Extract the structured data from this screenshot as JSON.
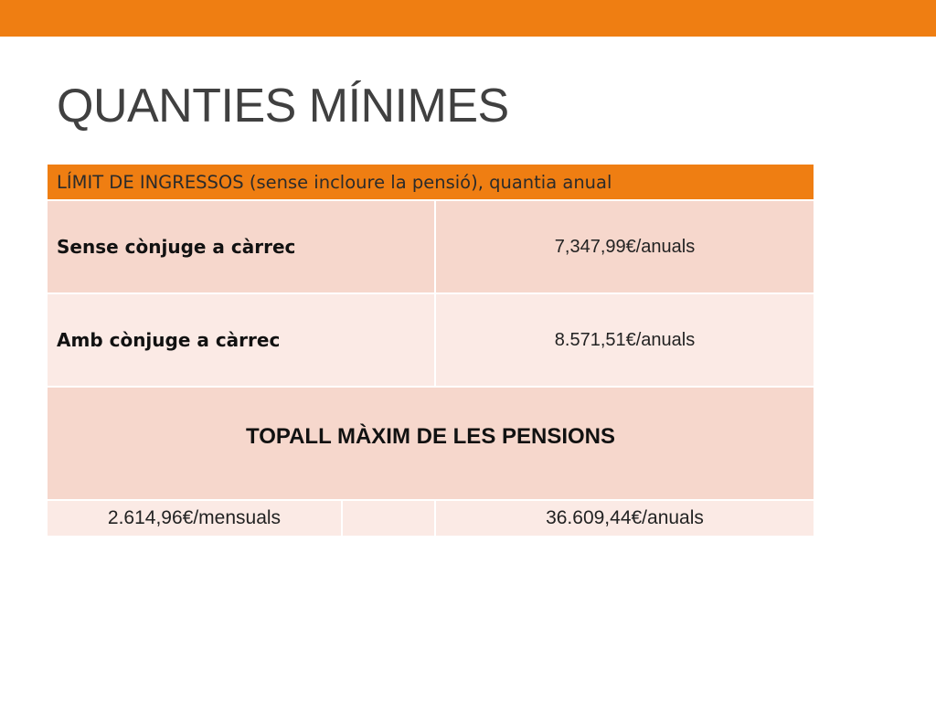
{
  "slide": {
    "title": "QUANTIES MÍNIMES"
  },
  "table": {
    "header": "LÍMIT DE INGRESSOS (sense incloure la pensió), quantia anual",
    "rows": [
      {
        "label": "Sense cònjuge a càrrec",
        "value": "7,347,99€/anuals"
      },
      {
        "label": "Amb cònjuge a càrrec",
        "value": "8.571,51€/anuals"
      }
    ],
    "section_title": "TOPALL MÀXIM DE LES PENSIONS",
    "bottom": {
      "monthly": "2.614,96€/mensuals",
      "middle": "",
      "annual": "36.609,44€/anuals"
    }
  },
  "colors": {
    "accent": "#ef7e12",
    "row_dark": "#f6d7cc",
    "row_light": "#fbeae5",
    "title": "#404040"
  }
}
